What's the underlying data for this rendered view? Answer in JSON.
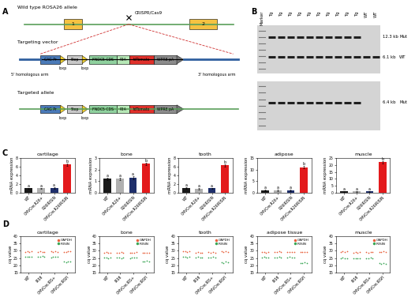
{
  "panel_labels": [
    "A",
    "B",
    "C",
    "D"
  ],
  "diagram": {
    "wild_type": {
      "title": "Wild type ROSA26 allele",
      "exons": [
        {
          "label": "1",
          "color": "#f5c242"
        },
        {
          "label": "2",
          "color": "#f5c242"
        }
      ],
      "cut_label": "CRISPR/Cas9"
    },
    "targeting_vector": {
      "title": "Targeting vector",
      "left_arm": "5' homologous arm",
      "right_arm": "3' homologous arm"
    },
    "targeted_allele": {
      "title": "Targeted allele"
    },
    "cassette": [
      {
        "label": "CAG Pr",
        "color": "#4a7ab8"
      },
      {
        "label": "loxp",
        "color": "#f2d230",
        "marker": "triangle"
      },
      {
        "label": "Stop",
        "color": "#c8c8c8"
      },
      {
        "label": "loxp",
        "color": "#f2d230",
        "marker": "triangle"
      },
      {
        "label": "FNDC5 CDS",
        "color": "#8fd19e"
      },
      {
        "label": "P2A",
        "color": "#b6e8b6"
      },
      {
        "label": "tdTomato",
        "color": "#e0302a"
      },
      {
        "label": "WPRE pA",
        "color": "#8c8c8c"
      }
    ]
  },
  "blot": {
    "lanes": [
      "Marker",
      "Tg",
      "Tg",
      "Tg",
      "Tg",
      "Tg",
      "Tg",
      "Tg",
      "Tg",
      "Tg",
      "Tg",
      "WT",
      "WT"
    ],
    "membranes": [
      {
        "bands": [
          {
            "size": "12.3 kb",
            "allele": "Mut",
            "present": [
              false,
              true,
              true,
              true,
              true,
              true,
              true,
              true,
              true,
              true,
              true,
              false,
              false
            ]
          },
          {
            "size": "6.1 kb",
            "allele": "WT",
            "present": [
              false,
              true,
              true,
              true,
              true,
              true,
              true,
              true,
              true,
              true,
              true,
              true,
              true
            ]
          }
        ]
      },
      {
        "bands": [
          {
            "size": "6.4 kb",
            "allele": "Mut",
            "present": [
              false,
              true,
              true,
              true,
              true,
              true,
              true,
              true,
              true,
              true,
              true,
              false,
              false
            ]
          }
        ]
      }
    ]
  },
  "chart_data": [
    {
      "type": "bar",
      "title": "cartilage",
      "ylabel": "mRNA expression",
      "categories": [
        "WT",
        "CMVCre;R26+",
        "R26IRISIN",
        "CMVCre;R26IRISIN"
      ],
      "values": [
        1.0,
        1.0,
        1.1,
        6.5
      ],
      "errors": [
        0.15,
        0.12,
        0.15,
        0.3
      ],
      "colors": [
        "#1a1a1a",
        "#b0b0b0",
        "#1f2f6b",
        "#e31a1c"
      ],
      "bar_labels": [
        "a",
        "a",
        "a",
        "b"
      ],
      "ylim": [
        0,
        8
      ],
      "yticks": [
        0,
        2,
        4,
        6,
        8
      ]
    },
    {
      "type": "bar",
      "title": "bone",
      "ylabel": "mRNA expression",
      "categories": [
        "WT",
        "CMVCre;R26+",
        "R26IRISIN",
        "CMVCre;R26IRISIN"
      ],
      "values": [
        1.2,
        1.2,
        1.3,
        2.5
      ],
      "errors": [
        0.1,
        0.1,
        0.12,
        0.12
      ],
      "colors": [
        "#1a1a1a",
        "#b0b0b0",
        "#1f2f6b",
        "#e31a1c"
      ],
      "bar_labels": [
        "a",
        "a",
        "a",
        "b"
      ],
      "ylim": [
        0,
        3
      ],
      "yticks": [
        0,
        1,
        2,
        3
      ]
    },
    {
      "type": "bar",
      "title": "tooth",
      "ylabel": "mRNA expression",
      "categories": [
        "WT",
        "CMVCre;R26+",
        "R26IRISIN",
        "CMVCre;R26IRISIN"
      ],
      "values": [
        1.0,
        0.9,
        1.0,
        6.3
      ],
      "errors": [
        0.2,
        0.15,
        0.15,
        0.3
      ],
      "colors": [
        "#1a1a1a",
        "#b0b0b0",
        "#1f2f6b",
        "#e31a1c"
      ],
      "bar_labels": [
        "a",
        "a",
        "a",
        "b"
      ],
      "ylim": [
        0,
        8
      ],
      "yticks": [
        0,
        2,
        4,
        6,
        8
      ]
    },
    {
      "type": "bar",
      "title": "adipose",
      "ylabel": "mRNA expression",
      "categories": [
        "WT",
        "CMVCre;R26+",
        "R26IRISIN",
        "CMVCre;R26IRISIN"
      ],
      "values": [
        1.0,
        1.0,
        1.0,
        11.0
      ],
      "errors": [
        0.2,
        0.2,
        0.2,
        0.5
      ],
      "colors": [
        "#1a1a1a",
        "#b0b0b0",
        "#1f2f6b",
        "#e31a1c"
      ],
      "bar_labels": [
        "a",
        "a",
        "a",
        "b"
      ],
      "ylim": [
        0,
        15
      ],
      "yticks": [
        0,
        5,
        10,
        15
      ]
    },
    {
      "type": "bar",
      "title": "muscle",
      "ylabel": "mRNA expression",
      "categories": [
        "WT",
        "CMVCre;R26+",
        "R26IRISIN",
        "CMVCre;R26IRISIN"
      ],
      "values": [
        1.0,
        1.0,
        1.0,
        22.0
      ],
      "errors": [
        0.3,
        0.3,
        0.3,
        0.8
      ],
      "colors": [
        "#1a1a1a",
        "#b0b0b0",
        "#1f2f6b",
        "#e31a1c"
      ],
      "bar_labels": [
        "a",
        "a",
        "a",
        "b"
      ],
      "ylim": [
        0,
        25
      ],
      "yticks": [
        0,
        5,
        10,
        15,
        20,
        25
      ]
    },
    {
      "type": "scatter",
      "title": "cartilage",
      "ylabel": "cq value",
      "legend": "upper right",
      "categories": [
        "WT",
        "IRSfl",
        "CMVCre;IRS+",
        "CMVCre;IRSfl"
      ],
      "series": [
        {
          "name": "GAPDH",
          "color": "#e8603c",
          "marker": "o",
          "values": [
            [
              29.2,
              29.5,
              29.0,
              29.4
            ],
            [
              29.1,
              29.6,
              29.3,
              29.0
            ],
            [
              29.4,
              29.2,
              29.5,
              29.1
            ],
            [
              29.3,
              29.0,
              29.4,
              29.6
            ]
          ]
        },
        {
          "name": "IRISIN",
          "color": "#3aa655",
          "marker": "o",
          "values": [
            [
              25.8,
              26.1,
              25.6,
              26.0
            ],
            [
              25.9,
              25.7,
              26.2,
              25.8
            ],
            [
              25.5,
              25.9,
              25.7,
              26.0
            ],
            [
              22.4,
              22.1,
              22.6,
              22.3
            ]
          ]
        }
      ],
      "ylim": [
        15,
        40
      ],
      "yticks": [
        15,
        20,
        25,
        30,
        35,
        40
      ]
    },
    {
      "type": "scatter",
      "title": "bone",
      "ylabel": "cq value",
      "legend": "upper right",
      "categories": [
        "WT",
        "IRSfl",
        "CMVCre;IRS+",
        "CMVCre;IRSfl"
      ],
      "series": [
        {
          "name": "GAPDH",
          "color": "#e8603c",
          "marker": "o",
          "values": [
            [
              28.6,
              28.9,
              28.4,
              28.8
            ],
            [
              28.7,
              28.5,
              28.9,
              28.6
            ],
            [
              28.8,
              28.4,
              28.7,
              28.9
            ],
            [
              28.5,
              28.8,
              28.6,
              28.4
            ]
          ]
        },
        {
          "name": "IRISIN",
          "color": "#3aa655",
          "marker": "o",
          "values": [
            [
              25.1,
              25.4,
              25.0,
              25.3
            ],
            [
              25.2,
              25.5,
              25.0,
              25.3
            ],
            [
              24.9,
              25.2,
              25.4,
              25.1
            ],
            [
              22.8,
              22.5,
              23.0,
              22.7
            ]
          ]
        }
      ],
      "ylim": [
        15,
        40
      ],
      "yticks": [
        15,
        20,
        25,
        30,
        35,
        40
      ]
    },
    {
      "type": "scatter",
      "title": "tooth",
      "ylabel": "cq value",
      "legend": "upper right",
      "categories": [
        "WT",
        "IRSfl",
        "CMVCre;IRS+",
        "CMVCre;IRSfl"
      ],
      "series": [
        {
          "name": "GAPDH",
          "color": "#e8603c",
          "marker": "o",
          "values": [
            [
              29.5,
              29.8,
              29.3,
              29.6
            ],
            [
              28.6,
              28.9,
              28.4,
              28.7
            ],
            [
              28.9,
              28.6,
              29.1,
              28.8
            ],
            [
              29.4,
              29.1,
              29.6,
              29.3
            ]
          ]
        },
        {
          "name": "IRISIN",
          "color": "#3aa655",
          "marker": "o",
          "values": [
            [
              25.6,
              25.9,
              25.4,
              25.7
            ],
            [
              25.3,
              25.6,
              25.1,
              25.4
            ],
            [
              25.5,
              25.2,
              25.7,
              25.4
            ],
            [
              22.0,
              21.7,
              22.3,
              21.9
            ]
          ]
        }
      ],
      "ylim": [
        15,
        40
      ],
      "yticks": [
        15,
        20,
        25,
        30,
        35,
        40
      ]
    },
    {
      "type": "scatter",
      "title": "adipose tissue",
      "ylabel": "cq value",
      "legend": "upper right",
      "categories": [
        "WT",
        "IRSfl",
        "CMVCre;IRS+",
        "CMVCre;IRSfl"
      ],
      "series": [
        {
          "name": "GAPDH",
          "color": "#e8603c",
          "marker": "o",
          "values": [
            [
              29.0,
              29.3,
              28.8,
              29.2
            ],
            [
              29.1,
              28.9,
              29.4,
              29.0
            ],
            [
              29.2,
              28.9,
              29.3,
              29.0
            ],
            [
              28.9,
              29.2,
              29.0,
              29.3
            ]
          ]
        },
        {
          "name": "IRISIN",
          "color": "#3aa655",
          "marker": "o",
          "values": [
            [
              25.4,
              25.7,
              25.2,
              25.5
            ],
            [
              25.5,
              25.3,
              25.8,
              25.4
            ],
            [
              25.3,
              25.6,
              25.1,
              25.5
            ],
            [
              21.6,
              21.3,
              21.8,
              21.5
            ]
          ]
        }
      ],
      "ylim": [
        15,
        40
      ],
      "yticks": [
        15,
        20,
        25,
        30,
        35,
        40
      ]
    },
    {
      "type": "scatter",
      "title": "muscle",
      "ylabel": "cq value",
      "legend": "upper right",
      "categories": [
        "WT",
        "IRSfl",
        "CMVCre;IRS+",
        "CMVCre;IRSfl"
      ],
      "series": [
        {
          "name": "GAPDH",
          "color": "#e8603c",
          "marker": "o",
          "values": [
            [
              29.3,
              29.6,
              29.1,
              29.4
            ],
            [
              28.8,
              29.1,
              28.6,
              28.9
            ],
            [
              29.0,
              28.7,
              29.2,
              28.9
            ],
            [
              29.2,
              28.9,
              29.4,
              29.1
            ]
          ]
        },
        {
          "name": "IRISIN",
          "color": "#3aa655",
          "marker": "o",
          "values": [
            [
              24.8,
              25.1,
              24.6,
              24.9
            ],
            [
              24.7,
              24.5,
              25.0,
              24.8
            ],
            [
              24.9,
              24.6,
              25.1,
              24.8
            ],
            [
              21.2,
              20.9,
              21.4,
              21.1
            ]
          ]
        }
      ],
      "ylim": [
        15,
        40
      ],
      "yticks": [
        15,
        20,
        25,
        30,
        35,
        40
      ]
    }
  ]
}
